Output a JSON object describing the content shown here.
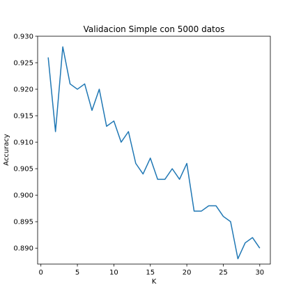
{
  "chart_data": {
    "type": "line",
    "title": "Validacion Simple con 5000 datos",
    "xlabel": "K",
    "ylabel": "Accuracy",
    "xlim": [
      -0.45,
      31.45
    ],
    "ylim": [
      0.887,
      0.93
    ],
    "xticks": [
      0,
      5,
      10,
      15,
      20,
      25,
      30
    ],
    "yticks": [
      0.89,
      0.895,
      0.9,
      0.905,
      0.91,
      0.915,
      0.92,
      0.925,
      0.93
    ],
    "xtick_labels": [
      "0",
      "5",
      "10",
      "15",
      "20",
      "25",
      "30"
    ],
    "ytick_labels": [
      "0.890",
      "0.895",
      "0.900",
      "0.905",
      "0.910",
      "0.915",
      "0.920",
      "0.925",
      "0.930"
    ],
    "grid": false,
    "series": [
      {
        "color": "#1f77b4",
        "x": [
          1,
          2,
          3,
          4,
          5,
          6,
          7,
          8,
          9,
          10,
          11,
          12,
          13,
          14,
          15,
          16,
          17,
          18,
          19,
          20,
          21,
          22,
          23,
          24,
          25,
          26,
          27,
          28,
          29,
          30
        ],
        "y": [
          0.926,
          0.912,
          0.928,
          0.921,
          0.92,
          0.921,
          0.916,
          0.92,
          0.913,
          0.914,
          0.91,
          0.912,
          0.906,
          0.904,
          0.907,
          0.903,
          0.903,
          0.905,
          0.903,
          0.906,
          0.897,
          0.897,
          0.898,
          0.898,
          0.896,
          0.895,
          0.888,
          0.891,
          0.892,
          0.89
        ]
      }
    ]
  }
}
